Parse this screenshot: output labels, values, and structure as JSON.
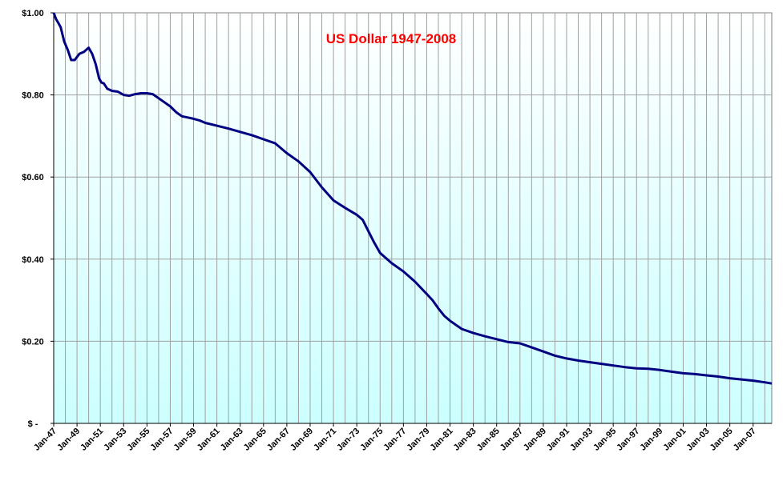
{
  "chart_data": {
    "type": "line",
    "title": "US Dollar 1947-2008",
    "title_color": "#FF0000",
    "line_color": "#000080",
    "background_gradient": [
      "#FFFFFF",
      "#CCFFFF"
    ],
    "grid": true,
    "xlabel": "",
    "ylabel": "",
    "xlim": [
      1947.0,
      2008.6
    ],
    "ylim": [
      0,
      1.0
    ],
    "y_ticks": [
      {
        "value": 0.0,
        "label": "$ -"
      },
      {
        "value": 0.2,
        "label": "$0.20"
      },
      {
        "value": 0.4,
        "label": "$0.40"
      },
      {
        "value": 0.6,
        "label": "$0.60"
      },
      {
        "value": 0.8,
        "label": "$0.80"
      },
      {
        "value": 1.0,
        "label": "$1.00"
      }
    ],
    "x_ticks": [
      {
        "value": 1947,
        "label": "Jan-47"
      },
      {
        "value": 1949,
        "label": "Jan-49"
      },
      {
        "value": 1951,
        "label": "Jan-51"
      },
      {
        "value": 1953,
        "label": "Jan-53"
      },
      {
        "value": 1955,
        "label": "Jan-55"
      },
      {
        "value": 1957,
        "label": "Jan-57"
      },
      {
        "value": 1959,
        "label": "Jan-59"
      },
      {
        "value": 1961,
        "label": "Jan-61"
      },
      {
        "value": 1963,
        "label": "Jan-63"
      },
      {
        "value": 1965,
        "label": "Jan-65"
      },
      {
        "value": 1967,
        "label": "Jan-67"
      },
      {
        "value": 1969,
        "label": "Jan-69"
      },
      {
        "value": 1971,
        "label": "Jan-71"
      },
      {
        "value": 1973,
        "label": "Jan-73"
      },
      {
        "value": 1975,
        "label": "Jan-75"
      },
      {
        "value": 1977,
        "label": "Jan-77"
      },
      {
        "value": 1979,
        "label": "Jan-79"
      },
      {
        "value": 1981,
        "label": "Jan-81"
      },
      {
        "value": 1983,
        "label": "Jan-83"
      },
      {
        "value": 1985,
        "label": "Jan-85"
      },
      {
        "value": 1987,
        "label": "Jan-87"
      },
      {
        "value": 1989,
        "label": "Jan-89"
      },
      {
        "value": 1991,
        "label": "Jan-91"
      },
      {
        "value": 1993,
        "label": "Jan-93"
      },
      {
        "value": 1995,
        "label": "Jan-95"
      },
      {
        "value": 1997,
        "label": "Jan-97"
      },
      {
        "value": 1999,
        "label": "Jan-99"
      },
      {
        "value": 2001,
        "label": "Jan-01"
      },
      {
        "value": 2003,
        "label": "Jan-03"
      },
      {
        "value": 2005,
        "label": "Jan-05"
      },
      {
        "value": 2007,
        "label": "Jan-07"
      }
    ],
    "series": [
      {
        "x": [
          1947.0,
          1947.2,
          1947.4,
          1947.6,
          1947.9,
          1948.2,
          1948.5,
          1948.8,
          1949.2,
          1949.6,
          1950.0,
          1950.3,
          1950.6,
          1950.9,
          1951.1,
          1951.3,
          1951.6,
          1952.0,
          1952.5,
          1953.0,
          1953.5,
          1954.0,
          1954.5,
          1955.0,
          1955.5,
          1956.0,
          1956.5,
          1957.0,
          1957.5,
          1958.0,
          1958.5,
          1959.0,
          1959.5,
          1960.0,
          1961.0,
          1962.0,
          1963.0,
          1964.0,
          1965.0,
          1966.0,
          1967.0,
          1968.0,
          1969.0,
          1970.0,
          1971.0,
          1972.0,
          1973.0,
          1973.5,
          1974.0,
          1974.5,
          1975.0,
          1976.0,
          1977.0,
          1978.0,
          1979.0,
          1979.5,
          1980.0,
          1980.5,
          1981.0,
          1982.0,
          1983.0,
          1984.0,
          1985.0,
          1986.0,
          1987.0,
          1988.0,
          1989.0,
          1990.0,
          1991.0,
          1992.0,
          1993.0,
          1994.0,
          1995.0,
          1996.0,
          1997.0,
          1998.0,
          1999.0,
          2000.0,
          2001.0,
          2002.0,
          2003.0,
          2004.0,
          2005.0,
          2006.0,
          2007.0,
          2008.0,
          2008.6
        ],
        "values": [
          1.0,
          0.985,
          0.975,
          0.965,
          0.93,
          0.91,
          0.885,
          0.885,
          0.9,
          0.905,
          0.915,
          0.9,
          0.875,
          0.84,
          0.83,
          0.828,
          0.815,
          0.81,
          0.808,
          0.8,
          0.798,
          0.802,
          0.804,
          0.804,
          0.802,
          0.792,
          0.782,
          0.772,
          0.758,
          0.748,
          0.745,
          0.742,
          0.738,
          0.732,
          0.725,
          0.718,
          0.71,
          0.702,
          0.692,
          0.682,
          0.658,
          0.638,
          0.612,
          0.575,
          0.543,
          0.525,
          0.508,
          0.496,
          0.468,
          0.44,
          0.415,
          0.39,
          0.37,
          0.345,
          0.315,
          0.3,
          0.28,
          0.262,
          0.25,
          0.23,
          0.22,
          0.212,
          0.205,
          0.198,
          0.195,
          0.185,
          0.175,
          0.165,
          0.158,
          0.153,
          0.149,
          0.145,
          0.141,
          0.137,
          0.134,
          0.133,
          0.13,
          0.126,
          0.122,
          0.12,
          0.117,
          0.114,
          0.11,
          0.107,
          0.104,
          0.1,
          0.097
        ]
      }
    ]
  }
}
